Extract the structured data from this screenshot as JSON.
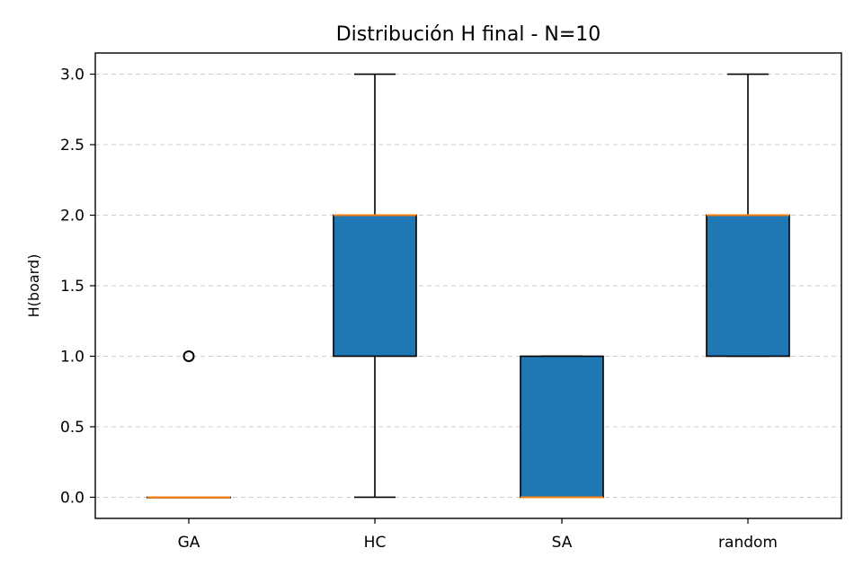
{
  "chart_data": {
    "type": "box",
    "title": "Distribución H final - N=10",
    "xlabel": "",
    "ylabel": "H(board)",
    "ylim": [
      -0.15,
      3.15
    ],
    "yticks": [
      0.0,
      0.5,
      1.0,
      1.5,
      2.0,
      2.5,
      3.0
    ],
    "ytick_labels": [
      "0.0",
      "0.5",
      "1.0",
      "1.5",
      "2.0",
      "2.5",
      "3.0"
    ],
    "grid": "y-dashed",
    "categories": [
      "GA",
      "HC",
      "SA",
      "random"
    ],
    "boxes": [
      {
        "category": "GA",
        "whisker_low": 0,
        "q1": 0,
        "median": 0,
        "q3": 0,
        "whisker_high": 0,
        "outliers": [
          1
        ]
      },
      {
        "category": "HC",
        "whisker_low": 0,
        "q1": 1,
        "median": 2,
        "q3": 2,
        "whisker_high": 3,
        "outliers": []
      },
      {
        "category": "SA",
        "whisker_low": 0,
        "q1": 0,
        "median": 0,
        "q3": 1,
        "whisker_high": 1,
        "outliers": []
      },
      {
        "category": "random",
        "whisker_low": 1,
        "q1": 1,
        "median": 2,
        "q3": 2,
        "whisker_high": 3,
        "outliers": []
      }
    ],
    "colors": {
      "box_fill": "#1f77b4",
      "median": "#ff7f0e",
      "edge": "#000000",
      "grid": "#cccccc"
    }
  }
}
